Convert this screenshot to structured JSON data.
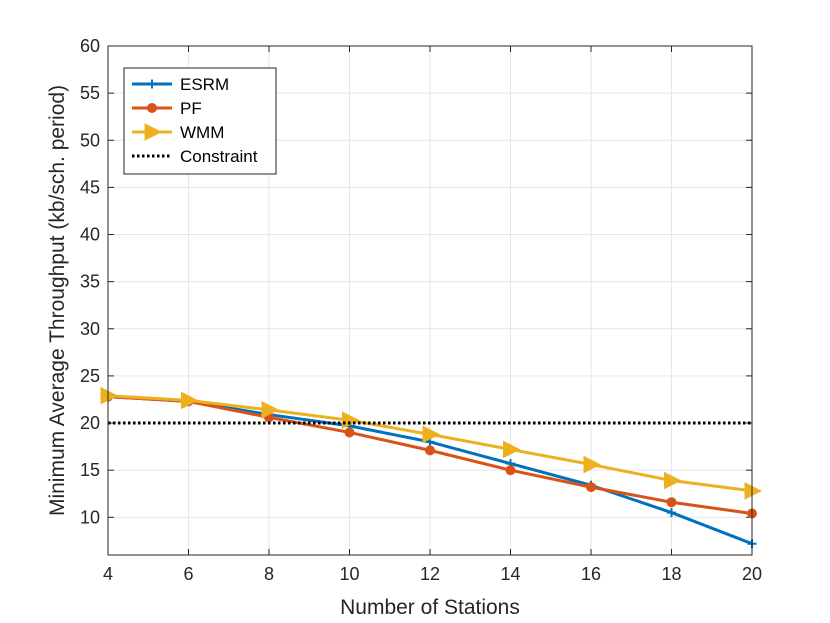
{
  "chart_data": {
    "type": "line",
    "title": "",
    "xlabel": "Number of Stations",
    "ylabel": "Minimum Average Throughput (kb/sch. period)",
    "xlim": [
      4,
      20
    ],
    "ylim": [
      6,
      60
    ],
    "xticks": [
      4,
      6,
      8,
      10,
      12,
      14,
      16,
      18,
      20
    ],
    "yticks": [
      10,
      15,
      20,
      25,
      30,
      35,
      40,
      45,
      50,
      55,
      60
    ],
    "grid": true,
    "legend_position": "top-left",
    "x": [
      4,
      6,
      8,
      10,
      12,
      14,
      16,
      18,
      20
    ],
    "series": [
      {
        "name": "ESRM",
        "values": [
          22.8,
          22.3,
          20.9,
          19.7,
          18.0,
          15.7,
          13.4,
          10.5,
          7.2
        ],
        "color": "#0072BD",
        "marker": "plus",
        "style": "solid"
      },
      {
        "name": "PF",
        "values": [
          22.8,
          22.3,
          20.6,
          19.0,
          17.1,
          15.0,
          13.2,
          11.6,
          10.4
        ],
        "color": "#D95319",
        "marker": "circle",
        "style": "solid"
      },
      {
        "name": "WMM",
        "values": [
          22.9,
          22.4,
          21.4,
          20.3,
          18.8,
          17.2,
          15.6,
          13.9,
          12.8
        ],
        "color": "#EDB120",
        "marker": "triangle-right",
        "style": "solid"
      },
      {
        "name": "Constraint",
        "values": [
          20,
          20,
          20,
          20,
          20,
          20,
          20,
          20,
          20
        ],
        "color": "#000000",
        "marker": "none",
        "style": "dotted"
      }
    ]
  }
}
